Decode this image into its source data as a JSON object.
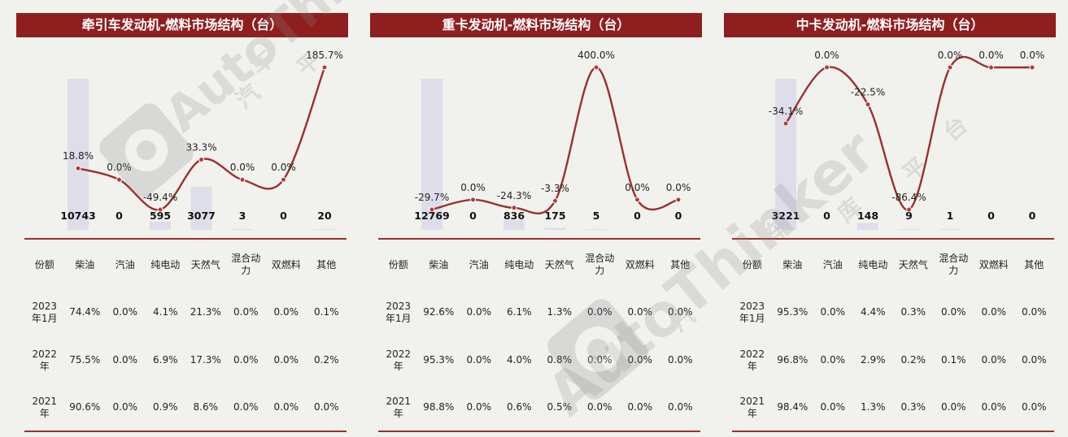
{
  "chart_data": [
    {
      "type": "bar+line",
      "title": "牵引车发动机-燃料市场结构（台）",
      "categories": [
        "柴油",
        "汽油",
        "纯电动",
        "天然气",
        "混合动力",
        "双燃料",
        "其他"
      ],
      "counts": [
        10743,
        0,
        595,
        3077,
        3,
        0,
        20
      ],
      "count_labels": [
        "10743",
        "0",
        "595",
        "3077",
        "3",
        "0",
        "20"
      ],
      "growth_pct": [
        18.8,
        0.0,
        -49.4,
        33.3,
        0.0,
        0.0,
        185.7
      ],
      "growth_labels": [
        "18.8%",
        "0.0%",
        "-49.4%",
        "33.3%",
        "0.0%",
        "0.0%",
        "185.7%"
      ],
      "table": {
        "corner": "份额",
        "headers": [
          "柴油",
          "汽油",
          "纯电动",
          "天然气",
          "混合动力",
          "双燃料",
          "其他"
        ],
        "rows": [
          {
            "label": "2023年1月",
            "values": [
              "74.4%",
              "0.0%",
              "4.1%",
              "21.3%",
              "0.0%",
              "0.0%",
              "0.1%"
            ]
          },
          {
            "label": "2022年",
            "values": [
              "75.5%",
              "0.0%",
              "6.9%",
              "17.3%",
              "0.0%",
              "0.0%",
              "0.2%"
            ]
          },
          {
            "label": "2021年",
            "values": [
              "90.6%",
              "0.0%",
              "0.9%",
              "8.6%",
              "0.0%",
              "0.0%",
              "0.0%"
            ]
          }
        ]
      }
    },
    {
      "type": "bar+line",
      "title": "重卡发动机-燃料市场结构（台）",
      "categories": [
        "柴油",
        "汽油",
        "纯电动",
        "天然气",
        "混合动力",
        "双燃料",
        "其他"
      ],
      "counts": [
        12769,
        0,
        836,
        175,
        5,
        0,
        0
      ],
      "count_labels": [
        "12769",
        "0",
        "836",
        "175",
        "5",
        "0",
        "0"
      ],
      "growth_pct": [
        -29.7,
        0.0,
        -24.3,
        -3.3,
        400.0,
        0.0,
        0.0
      ],
      "growth_labels": [
        "-29.7%",
        "0.0%",
        "-24.3%",
        "-3.3%",
        "400.0%",
        "0.0%",
        "0.0%"
      ],
      "table": {
        "corner": "份额",
        "headers": [
          "柴油",
          "汽油",
          "纯电动",
          "天然气",
          "混合动力",
          "双燃料",
          "其他"
        ],
        "rows": [
          {
            "label": "2023年1月",
            "values": [
              "92.6%",
              "0.0%",
              "6.1%",
              "1.3%",
              "0.0%",
              "0.0%",
              "0.0%"
            ]
          },
          {
            "label": "2022年",
            "values": [
              "95.3%",
              "0.0%",
              "4.0%",
              "0.8%",
              "0.0%",
              "0.0%",
              "0.0%"
            ]
          },
          {
            "label": "2021年",
            "values": [
              "98.8%",
              "0.0%",
              "0.6%",
              "0.5%",
              "0.0%",
              "0.0%",
              "0.0%"
            ]
          }
        ]
      }
    },
    {
      "type": "bar+line",
      "title": "中卡发动机-燃料市场结构（台）",
      "categories": [
        "柴油",
        "汽油",
        "纯电动",
        "天然气",
        "混合动力",
        "双燃料",
        "其他"
      ],
      "counts": [
        3221,
        0,
        148,
        9,
        1,
        0,
        0
      ],
      "count_labels": [
        "3221",
        "0",
        "148",
        "9",
        "1",
        "0",
        "0"
      ],
      "growth_pct": [
        -34.1,
        0.0,
        -22.5,
        -86.4,
        0.0,
        0.0,
        0.0
      ],
      "growth_labels": [
        "-34.1%",
        "0.0%",
        "-22.5%",
        "-86.4%",
        "0.0%",
        "0.0%",
        "0.0%"
      ],
      "table": {
        "corner": "份额",
        "headers": [
          "柴油",
          "汽油",
          "纯电动",
          "天然气",
          "混合动力",
          "双燃料",
          "其他"
        ],
        "rows": [
          {
            "label": "2023年1月",
            "values": [
              "95.3%",
              "0.0%",
              "4.4%",
              "0.3%",
              "0.0%",
              "0.0%",
              "0.0%"
            ]
          },
          {
            "label": "2022年",
            "values": [
              "96.8%",
              "0.0%",
              "2.9%",
              "0.2%",
              "0.1%",
              "0.0%",
              "0.0%"
            ]
          },
          {
            "label": "2021年",
            "values": [
              "98.4%",
              "0.0%",
              "1.3%",
              "0.3%",
              "0.0%",
              "0.0%",
              "0.0%"
            ]
          }
        ]
      }
    }
  ],
  "watermark": {
    "brand": "AutoThinker",
    "chars": [
      "汽",
      "车",
      "智",
      "库",
      "平",
      "台"
    ]
  },
  "colors": {
    "title_bar": "#8f1f1f",
    "line": "#9b2f2f",
    "bar": "#dddee9",
    "background": "#f1f2ee"
  }
}
